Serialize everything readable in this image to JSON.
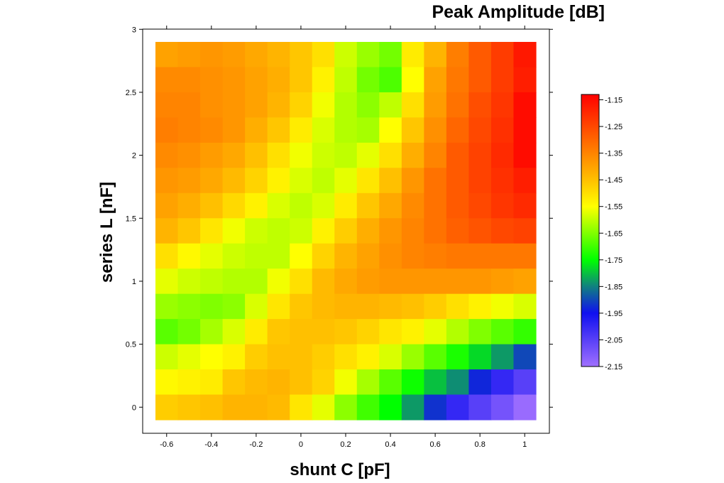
{
  "chart_data": {
    "type": "heatmap",
    "title": "Peak Amplitude [dB]",
    "xlabel": "shunt C [pF]",
    "ylabel": "series L [nF]",
    "x": [
      -0.6,
      -0.5,
      -0.4,
      -0.3,
      -0.2,
      -0.1,
      0,
      0.1,
      0.2,
      0.3,
      0.4,
      0.5,
      0.6,
      0.7,
      0.8,
      0.9,
      1.0
    ],
    "y": [
      2.8,
      2.6,
      2.4,
      2.2,
      2.0,
      1.8,
      1.6,
      1.4,
      1.2,
      1.0,
      0.8,
      0.6,
      0.4,
      0.2,
      0.0
    ],
    "xlim": [
      -0.65,
      1.05
    ],
    "ylim": [
      -0.1,
      2.9
    ],
    "x_ticks": [
      "-0.6",
      "-0.4",
      "-0.2",
      "0",
      "0.2",
      "0.4",
      "0.6",
      "0.8",
      "1"
    ],
    "y_ticks": [
      "0",
      "0.5",
      "1",
      "1.5",
      "2",
      "2.5",
      "3"
    ],
    "colorbar_ticks": [
      "-1.15",
      "-1.25",
      "-1.35",
      "-1.45",
      "-1.55",
      "-1.65",
      "-1.75",
      "-1.85",
      "-1.95",
      "-2.05",
      "-2.15"
    ],
    "colorbar_range": [
      -2.15,
      -1.13
    ],
    "z": [
      [
        -1.4,
        -1.39,
        -1.38,
        -1.39,
        -1.41,
        -1.43,
        -1.46,
        -1.5,
        -1.59,
        -1.63,
        -1.66,
        -1.52,
        -1.43,
        -1.34,
        -1.28,
        -1.23,
        -1.17
      ],
      [
        -1.36,
        -1.36,
        -1.37,
        -1.38,
        -1.4,
        -1.42,
        -1.46,
        -1.53,
        -1.6,
        -1.66,
        -1.69,
        -1.55,
        -1.4,
        -1.33,
        -1.28,
        -1.23,
        -1.18
      ],
      [
        -1.35,
        -1.35,
        -1.37,
        -1.38,
        -1.4,
        -1.43,
        -1.48,
        -1.56,
        -1.61,
        -1.64,
        -1.6,
        -1.5,
        -1.39,
        -1.32,
        -1.26,
        -1.22,
        -1.15
      ],
      [
        -1.34,
        -1.35,
        -1.36,
        -1.38,
        -1.42,
        -1.46,
        -1.52,
        -1.58,
        -1.61,
        -1.62,
        -1.55,
        -1.46,
        -1.37,
        -1.3,
        -1.25,
        -1.21,
        -1.15
      ],
      [
        -1.36,
        -1.37,
        -1.39,
        -1.41,
        -1.45,
        -1.5,
        -1.56,
        -1.59,
        -1.6,
        -1.57,
        -1.5,
        -1.42,
        -1.35,
        -1.28,
        -1.24,
        -1.2,
        -1.15
      ],
      [
        -1.38,
        -1.39,
        -1.41,
        -1.44,
        -1.48,
        -1.53,
        -1.58,
        -1.6,
        -1.57,
        -1.51,
        -1.45,
        -1.38,
        -1.32,
        -1.28,
        -1.24,
        -1.21,
        -1.18
      ],
      [
        -1.4,
        -1.42,
        -1.45,
        -1.49,
        -1.53,
        -1.58,
        -1.6,
        -1.58,
        -1.52,
        -1.46,
        -1.41,
        -1.36,
        -1.32,
        -1.28,
        -1.25,
        -1.22,
        -1.2
      ],
      [
        -1.43,
        -1.46,
        -1.51,
        -1.56,
        -1.59,
        -1.6,
        -1.59,
        -1.53,
        -1.47,
        -1.42,
        -1.38,
        -1.35,
        -1.32,
        -1.29,
        -1.27,
        -1.25,
        -1.24
      ],
      [
        -1.5,
        -1.54,
        -1.57,
        -1.59,
        -1.6,
        -1.6,
        -1.55,
        -1.48,
        -1.43,
        -1.4,
        -1.37,
        -1.35,
        -1.34,
        -1.33,
        -1.33,
        -1.33,
        -1.33
      ],
      [
        -1.57,
        -1.59,
        -1.6,
        -1.61,
        -1.61,
        -1.56,
        -1.5,
        -1.44,
        -1.41,
        -1.39,
        -1.38,
        -1.38,
        -1.38,
        -1.38,
        -1.38,
        -1.39,
        -1.4
      ],
      [
        -1.63,
        -1.64,
        -1.65,
        -1.64,
        -1.58,
        -1.51,
        -1.46,
        -1.44,
        -1.43,
        -1.43,
        -1.44,
        -1.45,
        -1.47,
        -1.5,
        -1.53,
        -1.56,
        -1.58
      ],
      [
        -1.68,
        -1.66,
        -1.62,
        -1.58,
        -1.52,
        -1.46,
        -1.45,
        -1.45,
        -1.46,
        -1.48,
        -1.51,
        -1.53,
        -1.57,
        -1.61,
        -1.65,
        -1.68,
        -1.71
      ],
      [
        -1.59,
        -1.57,
        -1.55,
        -1.53,
        -1.47,
        -1.45,
        -1.45,
        -1.47,
        -1.5,
        -1.53,
        -1.58,
        -1.63,
        -1.68,
        -1.73,
        -1.78,
        -1.83,
        -1.9
      ],
      [
        -1.54,
        -1.53,
        -1.52,
        -1.46,
        -1.44,
        -1.43,
        -1.45,
        -1.48,
        -1.56,
        -1.62,
        -1.68,
        -1.74,
        -1.8,
        -1.84,
        -1.93,
        -2.0,
        -2.05
      ],
      [
        -1.47,
        -1.46,
        -1.45,
        -1.43,
        -1.43,
        -1.44,
        -1.51,
        -1.57,
        -1.64,
        -1.7,
        -1.75,
        -1.83,
        -1.92,
        -2.0,
        -2.05,
        -2.09,
        -2.14
      ]
    ]
  }
}
